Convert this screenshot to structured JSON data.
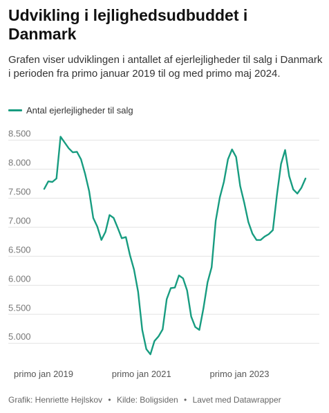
{
  "title": "Udvikling i lejlighedsudbuddet i Danmark",
  "subtitle": "Grafen viser udviklingen i antallet af ejerlejligheder til salg i Danmark i perioden fra primo januar 2019 til og med primo maj 2024.",
  "footer": {
    "graphic": "Grafik: Henriette Hejlskov",
    "source": "Kilde: Boligsiden",
    "made_with": "Lavet med Datawrapper",
    "separator": "•"
  },
  "colors": {
    "line": "#179c80",
    "grid": "#e3e3e3",
    "tick_text": "#777777"
  },
  "chart_data": {
    "type": "line",
    "title": "Udvikling i lejlighedsudbuddet i Danmark",
    "x_tick_labels": [
      "primo jan 2019",
      "primo jan 2021",
      "primo jan 2023"
    ],
    "x_tick_indices": [
      0,
      24,
      48
    ],
    "y_ticks": [
      5000,
      5500,
      6000,
      6500,
      7000,
      7500,
      8000,
      8500
    ],
    "y_tick_labels": [
      "5.000",
      "5.500",
      "6.000",
      "6.500",
      "7.000",
      "7.500",
      "8.000",
      "8.500"
    ],
    "ylim": [
      4800,
      8650
    ],
    "grid": true,
    "legend_position": "top-left",
    "series": [
      {
        "name": "Antal ejerlejligheder til salg",
        "color": "#179c80",
        "values": [
          7660,
          7790,
          7780,
          7840,
          8560,
          8460,
          8360,
          8290,
          8300,
          8170,
          7920,
          7620,
          7160,
          7010,
          6780,
          6920,
          7210,
          7160,
          6990,
          6810,
          6830,
          6520,
          6270,
          5890,
          5230,
          4900,
          4810,
          5040,
          5120,
          5240,
          5760,
          5950,
          5960,
          6170,
          6120,
          5910,
          5460,
          5280,
          5230,
          5600,
          6050,
          6310,
          7110,
          7510,
          7780,
          8170,
          8340,
          8210,
          7710,
          7420,
          7090,
          6890,
          6780,
          6780,
          6840,
          6880,
          6950,
          7560,
          8090,
          8330,
          7880,
          7650,
          7580,
          7680,
          7840
        ]
      }
    ]
  }
}
